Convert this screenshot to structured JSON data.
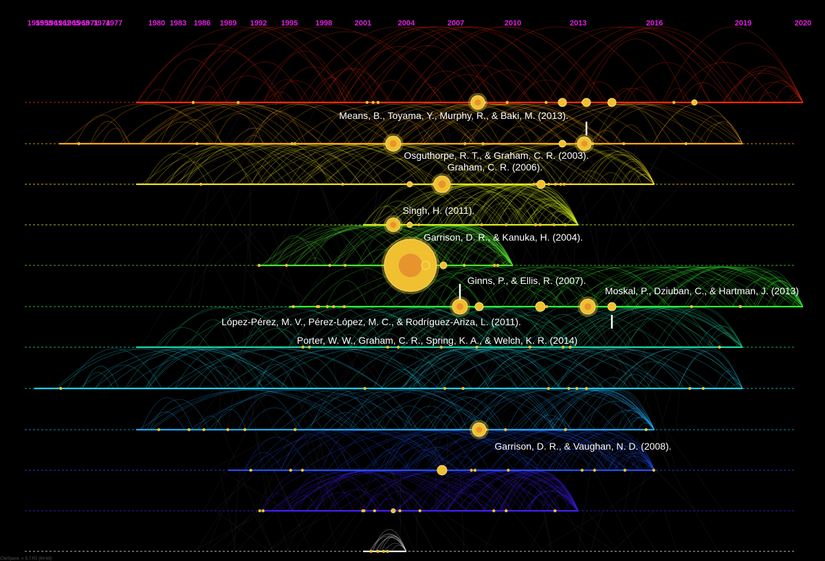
{
  "axis": {
    "color": "#e020e0",
    "years": [
      "1955",
      "1958",
      "1961",
      "1962",
      "1965",
      "1968",
      "1971",
      "1974",
      "1977",
      "1980",
      "1983",
      "1986",
      "1989",
      "1992",
      "1995",
      "1998",
      "2001",
      "2004",
      "2007",
      "2010",
      "2013",
      "2016",
      "2019",
      "2020"
    ]
  },
  "clusters": [
    {
      "id": 0,
      "color": "#ff2a10",
      "span": [
        "1977",
        "2020"
      ]
    },
    {
      "id": 1,
      "color": "#ffaa10",
      "span": [
        "1962",
        "2019"
      ]
    },
    {
      "id": 2,
      "color": "#f0e020",
      "span": [
        "1977",
        "2016"
      ]
    },
    {
      "id": 3,
      "color": "#d8f020",
      "span": [
        "2001",
        "2013"
      ]
    },
    {
      "id": 4,
      "color": "#50e030",
      "span": [
        "1992",
        "2010"
      ]
    },
    {
      "id": 5,
      "color": "#30f030",
      "span": [
        "1995",
        "2020"
      ]
    },
    {
      "id": 6,
      "color": "#20d8a0",
      "span": [
        "1977",
        "2019"
      ]
    },
    {
      "id": 7,
      "color": "#20d0e8",
      "span": [
        "1955",
        "2019"
      ]
    },
    {
      "id": 8,
      "color": "#20a8f0",
      "span": [
        "1977",
        "2016"
      ]
    },
    {
      "id": 9,
      "color": "#2050f0",
      "span": [
        "1989",
        "2016"
      ]
    },
    {
      "id": 10,
      "color": "#4020f0",
      "span": [
        "1992",
        "2013"
      ]
    },
    {
      "id": 11,
      "color": "#f0f0f0",
      "span": [
        "2001",
        "2004"
      ]
    }
  ],
  "references": [
    {
      "label": "Means, B., Toyama, Y., Murphy, R., & Baki, M. (2013)."
    },
    {
      "label": "Osguthorpe, R. T., & Graham, C. R. (2003)."
    },
    {
      "label": "Graham, C. R. (2006)."
    },
    {
      "label": "Singh, H. (2011)."
    },
    {
      "label": "Garrison, D. R., & Kanuka, H. (2004)."
    },
    {
      "label": "Ginns, P., & Ellis, R. (2007)."
    },
    {
      "label": "Moskal, P., Dziuban, C., & Hartman, J. (2013)"
    },
    {
      "label": "López-Pérez, M. V., Pérez-López, M. C., & Rodríguez-Ariza, L. (2011)."
    },
    {
      "label": "Porter, W. W., Graham, C. R., Spring, K. A., & Welch, K. R. (2014)"
    },
    {
      "label": "Garrison, D. R., & Vaughan, N. D. (2008)."
    }
  ],
  "footer_text": "CiteSpace, v. 5.7.R2 (64-bit)"
}
